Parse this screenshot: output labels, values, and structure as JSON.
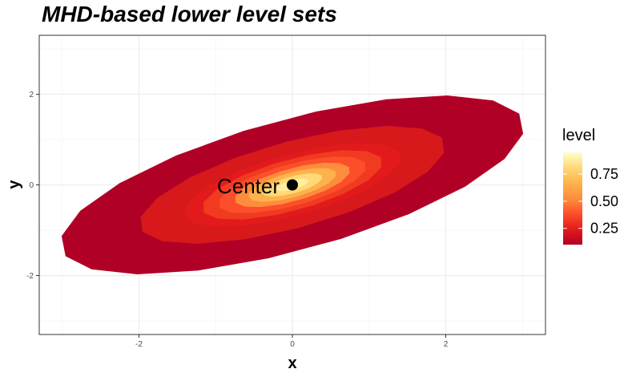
{
  "chart_data": {
    "type": "contour",
    "title": "MHD-based lower level sets",
    "xlabel": "x",
    "ylabel": "y",
    "xlim": [
      -3.3,
      3.3
    ],
    "ylim": [
      -3.3,
      3.3
    ],
    "x_ticks": [
      -2,
      0,
      2
    ],
    "y_ticks": [
      -2,
      0,
      2
    ],
    "x_tick_labels": [
      "-2",
      "0",
      "2"
    ],
    "y_tick_labels": [
      "-2",
      "0",
      "2"
    ],
    "grid": true,
    "center": {
      "x": 0,
      "y": 0,
      "label": "Center"
    },
    "ellipse": {
      "semi_major": 3.35,
      "semi_minor": 1.35,
      "angle_deg": 28
    },
    "levels": [
      0.1,
      0.2,
      0.3,
      0.4,
      0.5,
      0.6,
      0.7,
      0.8,
      0.9
    ],
    "level_scales": [
      1.0,
      0.66,
      0.47,
      0.39,
      0.32,
      0.25,
      0.19,
      0.13,
      0.07
    ],
    "legend": {
      "title": "level",
      "position": "right",
      "ticks": [
        0.25,
        0.5,
        0.75
      ],
      "tick_labels": [
        "0.25",
        "0.50",
        "0.75"
      ],
      "range": [
        0.1,
        0.95
      ]
    },
    "colors": [
      "#b10026",
      "#d7191c",
      "#e31a1c",
      "#f03b20",
      "#fc4e2a",
      "#fd8d3c",
      "#feb24c",
      "#fed976",
      "#ffeda0"
    ]
  }
}
